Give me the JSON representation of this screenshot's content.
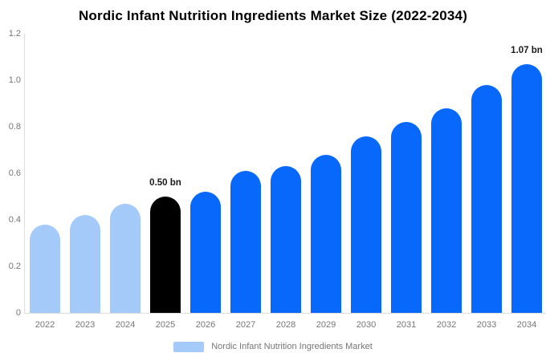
{
  "chart_data": {
    "type": "bar",
    "title": "Nordic Infant Nutrition Ingredients Market Size (2022-2034)",
    "categories": [
      "2022",
      "2023",
      "2024",
      "2025",
      "2026",
      "2027",
      "2028",
      "2029",
      "2030",
      "2031",
      "2032",
      "2033",
      "2034"
    ],
    "series": [
      {
        "name": "Nordic Infant Nutrition Ingredients Market",
        "values": [
          0.38,
          0.42,
          0.47,
          0.5,
          0.52,
          0.61,
          0.63,
          0.68,
          0.76,
          0.82,
          0.88,
          0.98,
          1.07
        ]
      }
    ],
    "unit": "bn",
    "ylim": [
      0,
      1.2
    ],
    "y_ticks": [
      "1.2",
      "1.0",
      "0.8",
      "0.6",
      "0.4",
      "0.2",
      "0"
    ],
    "grid": false,
    "legend_position": "bottom",
    "bar_color_roles": [
      "past",
      "past",
      "past",
      "current",
      "forecast",
      "forecast",
      "forecast",
      "forecast",
      "forecast",
      "forecast",
      "forecast",
      "forecast",
      "forecast"
    ],
    "annotations": [
      {
        "category": "2025",
        "text": "0.50 bn"
      },
      {
        "category": "2034",
        "text": "1.07 bn"
      }
    ],
    "colors": {
      "past": "#a4cafa",
      "current": "#000000",
      "forecast": "#0768fb",
      "axis_line": "#dddddd",
      "tick_label": "#757575",
      "annotation": "#1a1a1a"
    }
  },
  "legend": {
    "label": "Nordic Infant Nutrition Ingredients Market",
    "swatch_color": "#a4cafa"
  }
}
